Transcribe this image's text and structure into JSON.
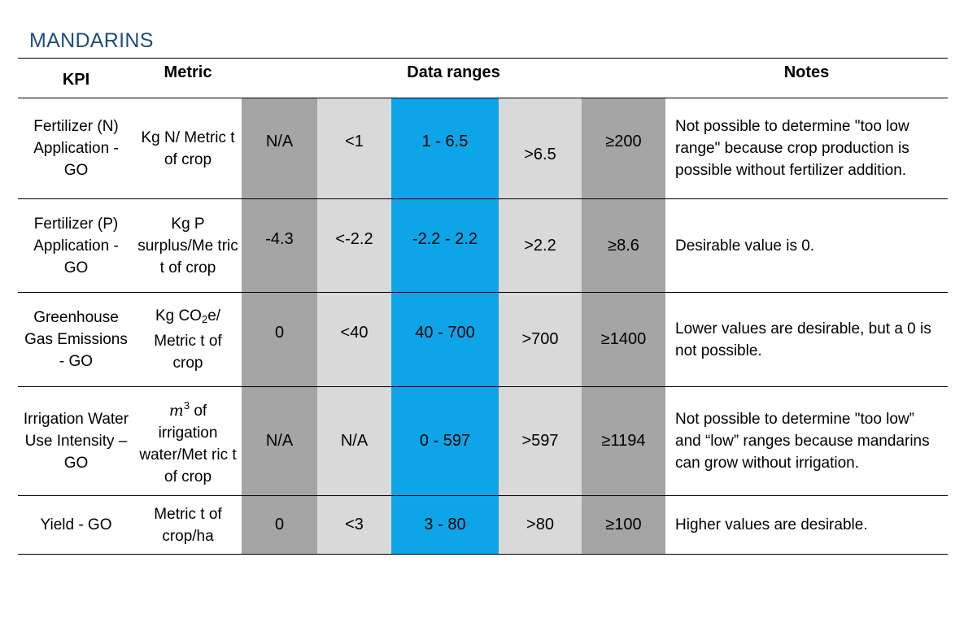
{
  "title": "MANDARINS",
  "header": {
    "kpi": "KPI",
    "metric": "Metric",
    "ranges": "Data ranges",
    "notes": "Notes"
  },
  "rows": [
    {
      "kpi": "Fertilizer (N) Application - GO",
      "metric": "Kg N/ Metric t of crop",
      "d1": "N/A",
      "d2": "<1",
      "d3": "1 - 6.5",
      "d4": ">6.5",
      "d5": "≥200",
      "notes": "Not possible to determine \"too low range\" because crop production is possible without fertilizer addition."
    },
    {
      "kpi": "Fertilizer (P) Application - GO",
      "metric": "Kg P surplus/Me tric t of crop",
      "d1": "-4.3",
      "d2": "<-2.2",
      "d3": "-2.2 - 2.2",
      "d4": ">2.2",
      "d5": "≥8.6",
      "notes": "Desirable value is 0."
    },
    {
      "kpi": "Greenhouse Gas Emissions - GO",
      "metric_pre": "Kg CO",
      "metric_sub": "2",
      "metric_post": "e/ Metric t of crop",
      "d1": "0",
      "d2": "<40",
      "d3": "40 - 700",
      "d4": ">700",
      "d5": "≥1400",
      "notes": "Lower values are desirable, but a 0 is not possible."
    },
    {
      "kpi": "Irrigation Water Use Intensity – GO",
      "metric_var": "m",
      "metric_sup": "3",
      "metric_post": " of irrigation water/Met ric t of crop",
      "d1": "N/A",
      "d2": "N/A",
      "d3": "0 - 597",
      "d4": ">597",
      "d5": "≥1194",
      "notes": "Not possible to determine \"too low” and “low” ranges because mandarins can grow without irrigation."
    },
    {
      "kpi": "Yield - GO",
      "metric": "Metric t of crop/ha",
      "d1": "0",
      "d2": "<3",
      "d3": "3 - 80",
      "d4": ">80",
      "d5": "≥100",
      "notes": "Higher values are desirable."
    }
  ],
  "colors": {
    "title": "#1f4e79",
    "dark_grey": "#a5a5a5",
    "light_grey": "#d9d9d9",
    "blue": "#0ea5e8"
  }
}
